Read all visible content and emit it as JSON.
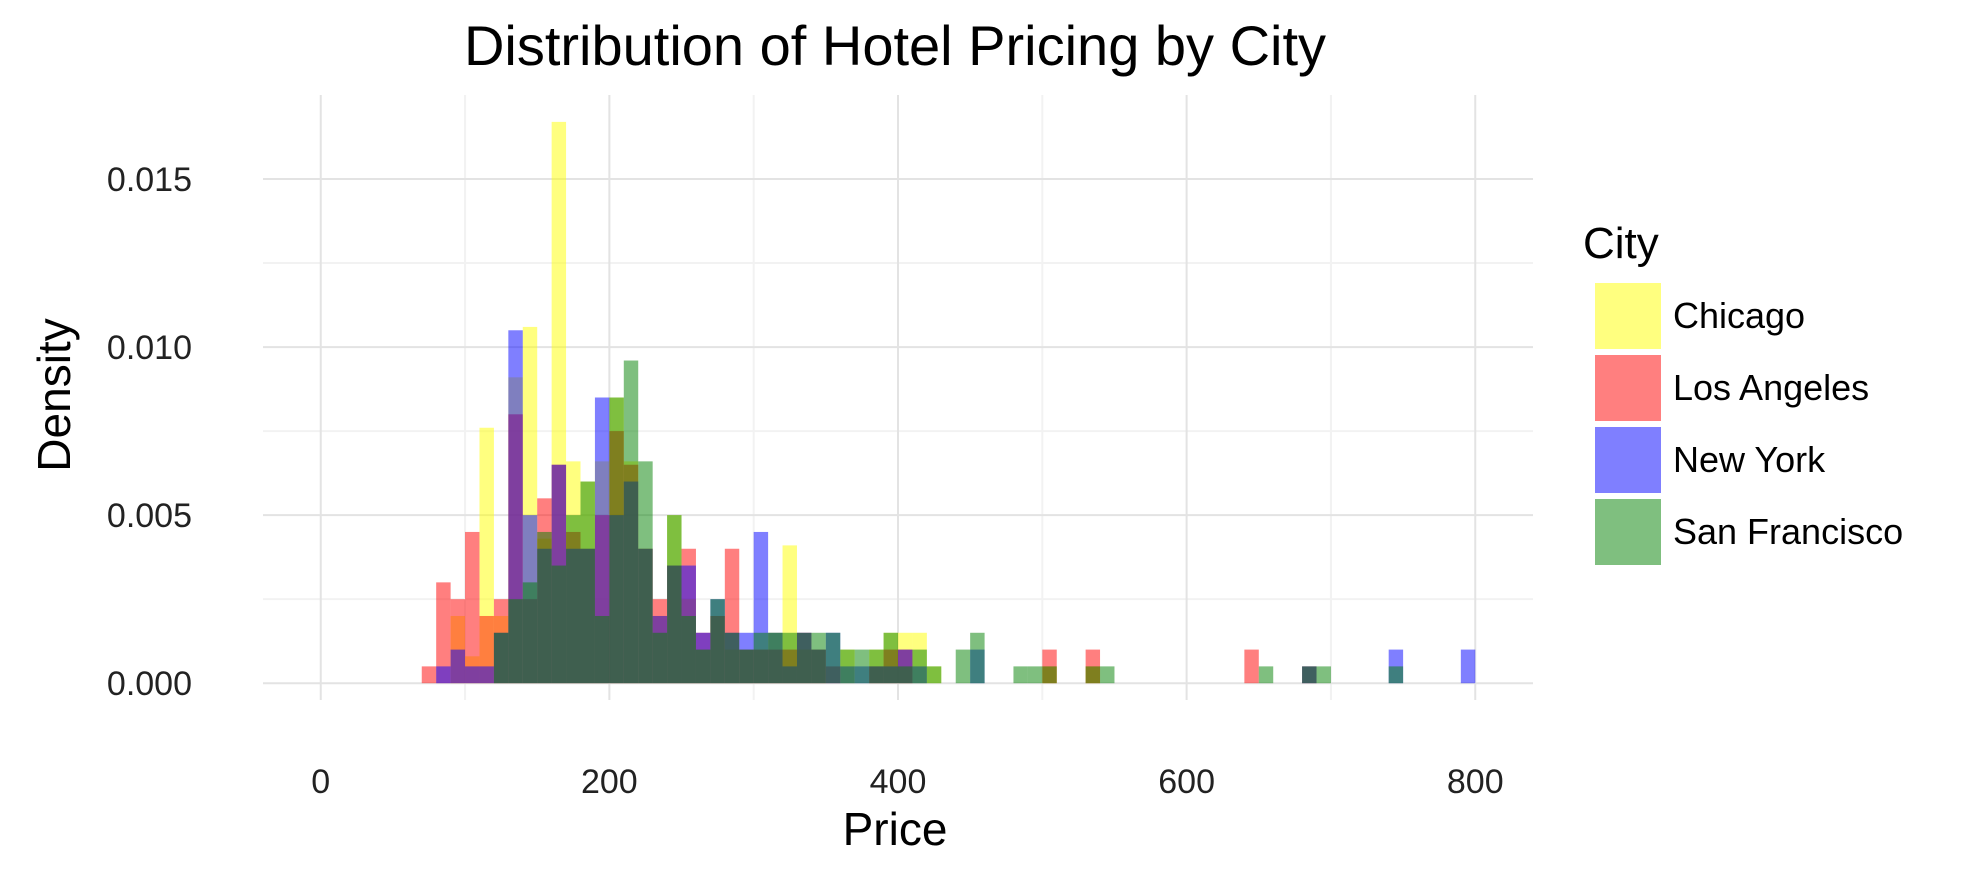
{
  "chart_data": {
    "type": "histogram",
    "title": "Distribution of Hotel Pricing by City",
    "xlabel": "Price",
    "ylabel": "Density",
    "xlim": [
      -40,
      840
    ],
    "ylim": [
      -0.0005,
      0.0175
    ],
    "x_ticks": [
      0,
      200,
      400,
      600,
      800
    ],
    "x_tick_labels": [
      "0",
      "200",
      "400",
      "600",
      "800"
    ],
    "y_ticks": [
      0,
      0.005,
      0.01,
      0.015
    ],
    "y_tick_labels": [
      "0.000",
      "0.005",
      "0.010",
      "0.015"
    ],
    "bin_width": 10,
    "grid": true,
    "legend": {
      "title": "City",
      "position": "right",
      "items": [
        "Chicago",
        "Los Angeles",
        "New York",
        "San Francisco"
      ]
    },
    "series": [
      {
        "name": "Chicago",
        "color": "#ffff00",
        "opacity": 0.5,
        "bins": [
          [
            90,
            0.002
          ],
          [
            100,
            0.0008
          ],
          [
            110,
            0.0076
          ],
          [
            120,
            0.002
          ],
          [
            130,
            0.0091
          ],
          [
            140,
            0.0106
          ],
          [
            150,
            0.0043
          ],
          [
            160,
            0.0167
          ],
          [
            170,
            0.0066
          ],
          [
            180,
            0.006
          ],
          [
            190,
            0.0066
          ],
          [
            200,
            0.0085
          ],
          [
            210,
            0.0066
          ],
          [
            220,
            0.004
          ],
          [
            230,
            0.002
          ],
          [
            240,
            0.005
          ],
          [
            250,
            0.0025
          ],
          [
            260,
            0.001
          ],
          [
            270,
            0.002
          ],
          [
            280,
            0.001
          ],
          [
            290,
            0.001
          ],
          [
            300,
            0.001
          ],
          [
            310,
            0.0015
          ],
          [
            320,
            0.0041
          ],
          [
            330,
            0.001
          ],
          [
            340,
            0.001
          ],
          [
            360,
            0.001
          ],
          [
            380,
            0.001
          ],
          [
            390,
            0.0015
          ],
          [
            400,
            0.0015
          ],
          [
            410,
            0.0015
          ],
          [
            420,
            0.0005
          ],
          [
            500,
            0.0005
          ],
          [
            530,
            0.0005
          ]
        ]
      },
      {
        "name": "Los Angeles",
        "color": "#ff0000",
        "opacity": 0.5,
        "bins": [
          [
            70,
            0.0005
          ],
          [
            80,
            0.003
          ],
          [
            90,
            0.0025
          ],
          [
            100,
            0.0045
          ],
          [
            110,
            0.002
          ],
          [
            120,
            0.0025
          ],
          [
            130,
            0.008
          ],
          [
            140,
            0.0025
          ],
          [
            150,
            0.0055
          ],
          [
            160,
            0.0065
          ],
          [
            170,
            0.0045
          ],
          [
            180,
            0.004
          ],
          [
            190,
            0.005
          ],
          [
            200,
            0.0075
          ],
          [
            210,
            0.0065
          ],
          [
            220,
            0.004
          ],
          [
            230,
            0.0025
          ],
          [
            240,
            0.0035
          ],
          [
            250,
            0.004
          ],
          [
            260,
            0.0015
          ],
          [
            270,
            0.002
          ],
          [
            280,
            0.004
          ],
          [
            290,
            0.001
          ],
          [
            300,
            0.001
          ],
          [
            310,
            0.001
          ],
          [
            320,
            0.001
          ],
          [
            330,
            0.0015
          ],
          [
            340,
            0.001
          ],
          [
            350,
            0.0005
          ],
          [
            380,
            0.0005
          ],
          [
            390,
            0.001
          ],
          [
            400,
            0.001
          ],
          [
            500,
            0.001
          ],
          [
            530,
            0.001
          ],
          [
            640,
            0.001
          ],
          [
            680,
            0.0005
          ]
        ]
      },
      {
        "name": "New York",
        "color": "#0000ff",
        "opacity": 0.5,
        "bins": [
          [
            80,
            0.0005
          ],
          [
            90,
            0.001
          ],
          [
            100,
            0.0005
          ],
          [
            110,
            0.0005
          ],
          [
            120,
            0.0015
          ],
          [
            130,
            0.0105
          ],
          [
            140,
            0.005
          ],
          [
            150,
            0.004
          ],
          [
            160,
            0.0065
          ],
          [
            170,
            0.004
          ],
          [
            180,
            0.004
          ],
          [
            190,
            0.0085
          ],
          [
            200,
            0.005
          ],
          [
            210,
            0.006
          ],
          [
            220,
            0.004
          ],
          [
            230,
            0.002
          ],
          [
            240,
            0.0035
          ],
          [
            250,
            0.0035
          ],
          [
            260,
            0.0015
          ],
          [
            270,
            0.0025
          ],
          [
            280,
            0.0015
          ],
          [
            290,
            0.0015
          ],
          [
            300,
            0.0045
          ],
          [
            310,
            0.0015
          ],
          [
            320,
            0.0005
          ],
          [
            330,
            0.0015
          ],
          [
            340,
            0.001
          ],
          [
            350,
            0.0015
          ],
          [
            360,
            0.0005
          ],
          [
            370,
            0.0005
          ],
          [
            380,
            0.0005
          ],
          [
            390,
            0.0005
          ],
          [
            400,
            0.001
          ],
          [
            410,
            0.0005
          ],
          [
            450,
            0.001
          ],
          [
            680,
            0.0005
          ],
          [
            740,
            0.001
          ],
          [
            790,
            0.001
          ]
        ]
      },
      {
        "name": "San Francisco",
        "color": "#008000",
        "opacity": 0.5,
        "bins": [
          [
            120,
            0.0015
          ],
          [
            130,
            0.0025
          ],
          [
            140,
            0.003
          ],
          [
            150,
            0.0045
          ],
          [
            160,
            0.0035
          ],
          [
            170,
            0.005
          ],
          [
            180,
            0.006
          ],
          [
            190,
            0.002
          ],
          [
            200,
            0.0085
          ],
          [
            210,
            0.0096
          ],
          [
            220,
            0.0066
          ],
          [
            230,
            0.0015
          ],
          [
            240,
            0.005
          ],
          [
            250,
            0.002
          ],
          [
            260,
            0.001
          ],
          [
            270,
            0.0025
          ],
          [
            280,
            0.0015
          ],
          [
            290,
            0.001
          ],
          [
            300,
            0.0015
          ],
          [
            310,
            0.0015
          ],
          [
            320,
            0.0015
          ],
          [
            330,
            0.0015
          ],
          [
            340,
            0.0015
          ],
          [
            350,
            0.0015
          ],
          [
            360,
            0.001
          ],
          [
            370,
            0.001
          ],
          [
            380,
            0.001
          ],
          [
            390,
            0.0015
          ],
          [
            400,
            0.0005
          ],
          [
            410,
            0.001
          ],
          [
            420,
            0.0005
          ],
          [
            440,
            0.001
          ],
          [
            450,
            0.0015
          ],
          [
            480,
            0.0005
          ],
          [
            490,
            0.0005
          ],
          [
            500,
            0.0005
          ],
          [
            530,
            0.0005
          ],
          [
            540,
            0.0005
          ],
          [
            650,
            0.0005
          ],
          [
            680,
            0.0005
          ],
          [
            690,
            0.0005
          ],
          [
            740,
            0.0005
          ]
        ]
      }
    ]
  }
}
